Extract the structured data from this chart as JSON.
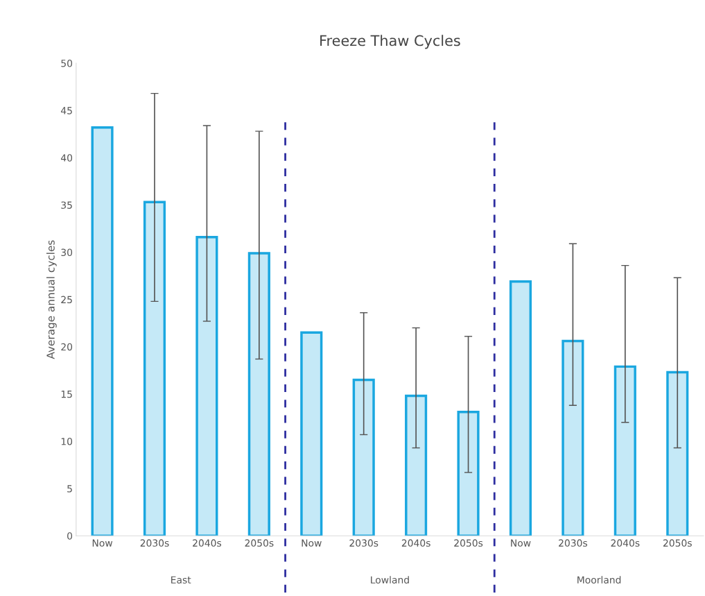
{
  "chart_data": {
    "type": "bar",
    "title": "Freeze Thaw Cycles",
    "ylabel": "Average annual cycles",
    "categories": [
      "Now",
      "2030s",
      "2040s",
      "2050s",
      "Now",
      "2030s",
      "2040s",
      "2050s",
      "Now",
      "2030s",
      "2040s",
      "2050s"
    ],
    "values": [
      43.2,
      35.3,
      31.6,
      29.9,
      21.5,
      16.5,
      14.8,
      13.1,
      26.9,
      20.6,
      17.9,
      17.3
    ],
    "errors": [
      null,
      [
        24.8,
        46.8
      ],
      [
        22.7,
        43.4
      ],
      [
        18.7,
        42.8
      ],
      null,
      [
        10.7,
        23.6
      ],
      [
        9.3,
        22.0
      ],
      [
        6.7,
        21.1
      ],
      null,
      [
        13.8,
        30.9
      ],
      [
        12.0,
        28.6
      ],
      [
        9.3,
        27.3
      ]
    ],
    "color": "#c5e9f7",
    "ylim": [
      0,
      50
    ],
    "yticks": [
      0,
      5,
      10,
      15,
      20,
      25,
      30,
      35,
      40,
      45,
      50
    ],
    "grid": false,
    "legend": false,
    "annotations": [
      "East",
      "Lowland",
      "Moorland"
    ]
  }
}
